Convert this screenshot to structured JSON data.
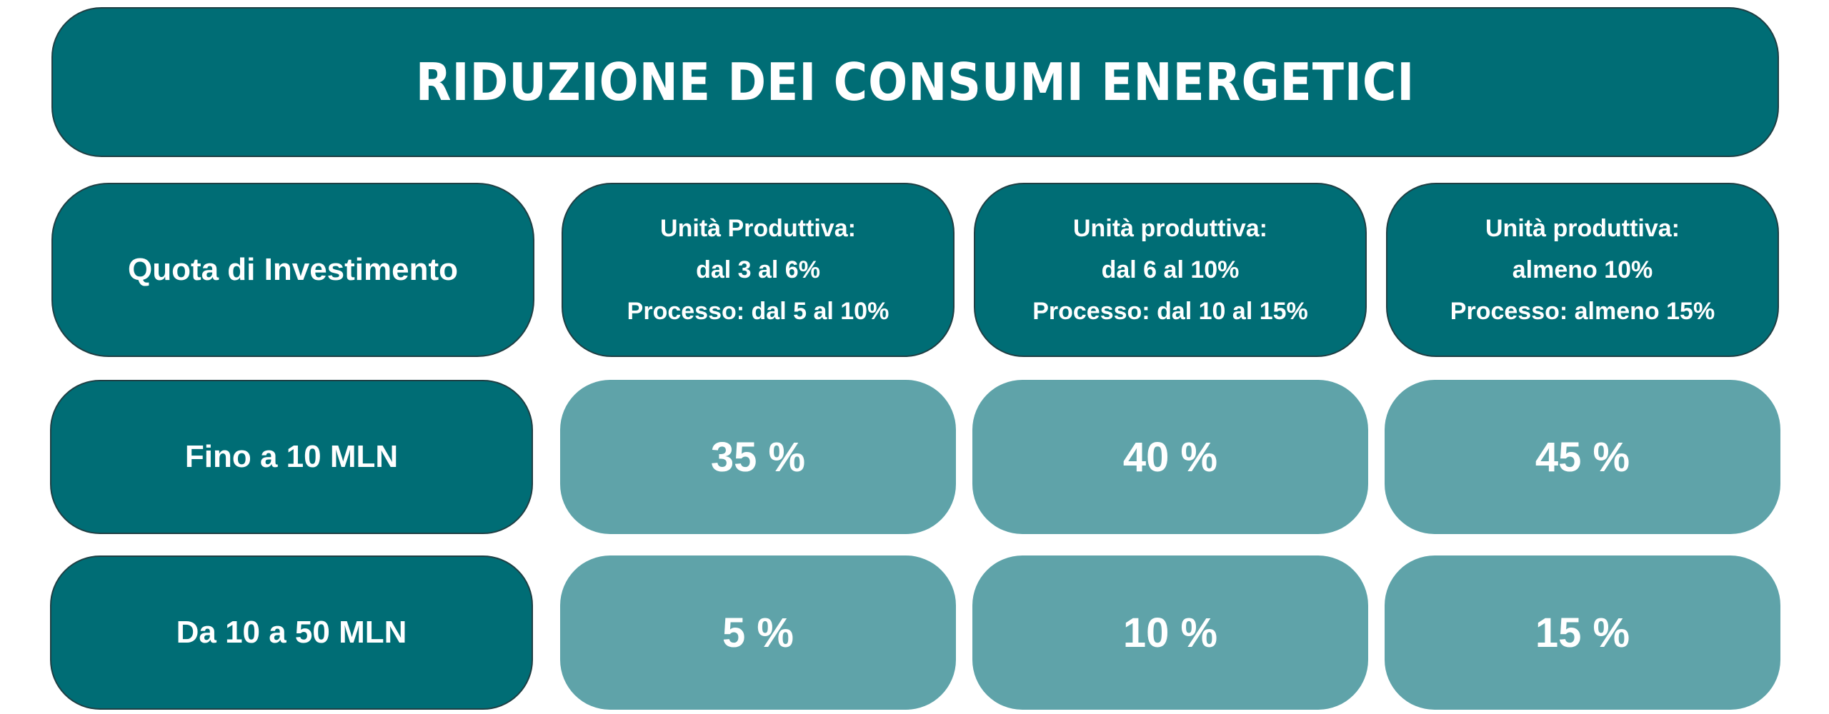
{
  "title": "RIDUZIONE DEI CONSUMI ENERGETICI",
  "header": {
    "quota_label": "Quota di Investimento",
    "columns": [
      {
        "line1": "Unità Produttiva:",
        "line2": "dal 3 al 6%",
        "line3": "Processo: dal 5 al 10%"
      },
      {
        "line1": "Unità produttiva:",
        "line2": "dal 6 al 10%",
        "line3": "Processo: dal 10 al 15%"
      },
      {
        "line1": "Unità produttiva:",
        "line2": "almeno 10%",
        "line3": "Processo: almeno 15%"
      }
    ]
  },
  "rows": [
    {
      "label": "Fino a 10 MLN",
      "values": [
        "35 %",
        "40 %",
        "45 %"
      ]
    },
    {
      "label": "Da 10 a 50 MLN",
      "values": [
        "5 %",
        "10 %",
        "15 %"
      ]
    }
  ],
  "colors": {
    "dark_teal": "#006d75",
    "light_teal": "#5fa3a9",
    "text": "#ffffff"
  }
}
